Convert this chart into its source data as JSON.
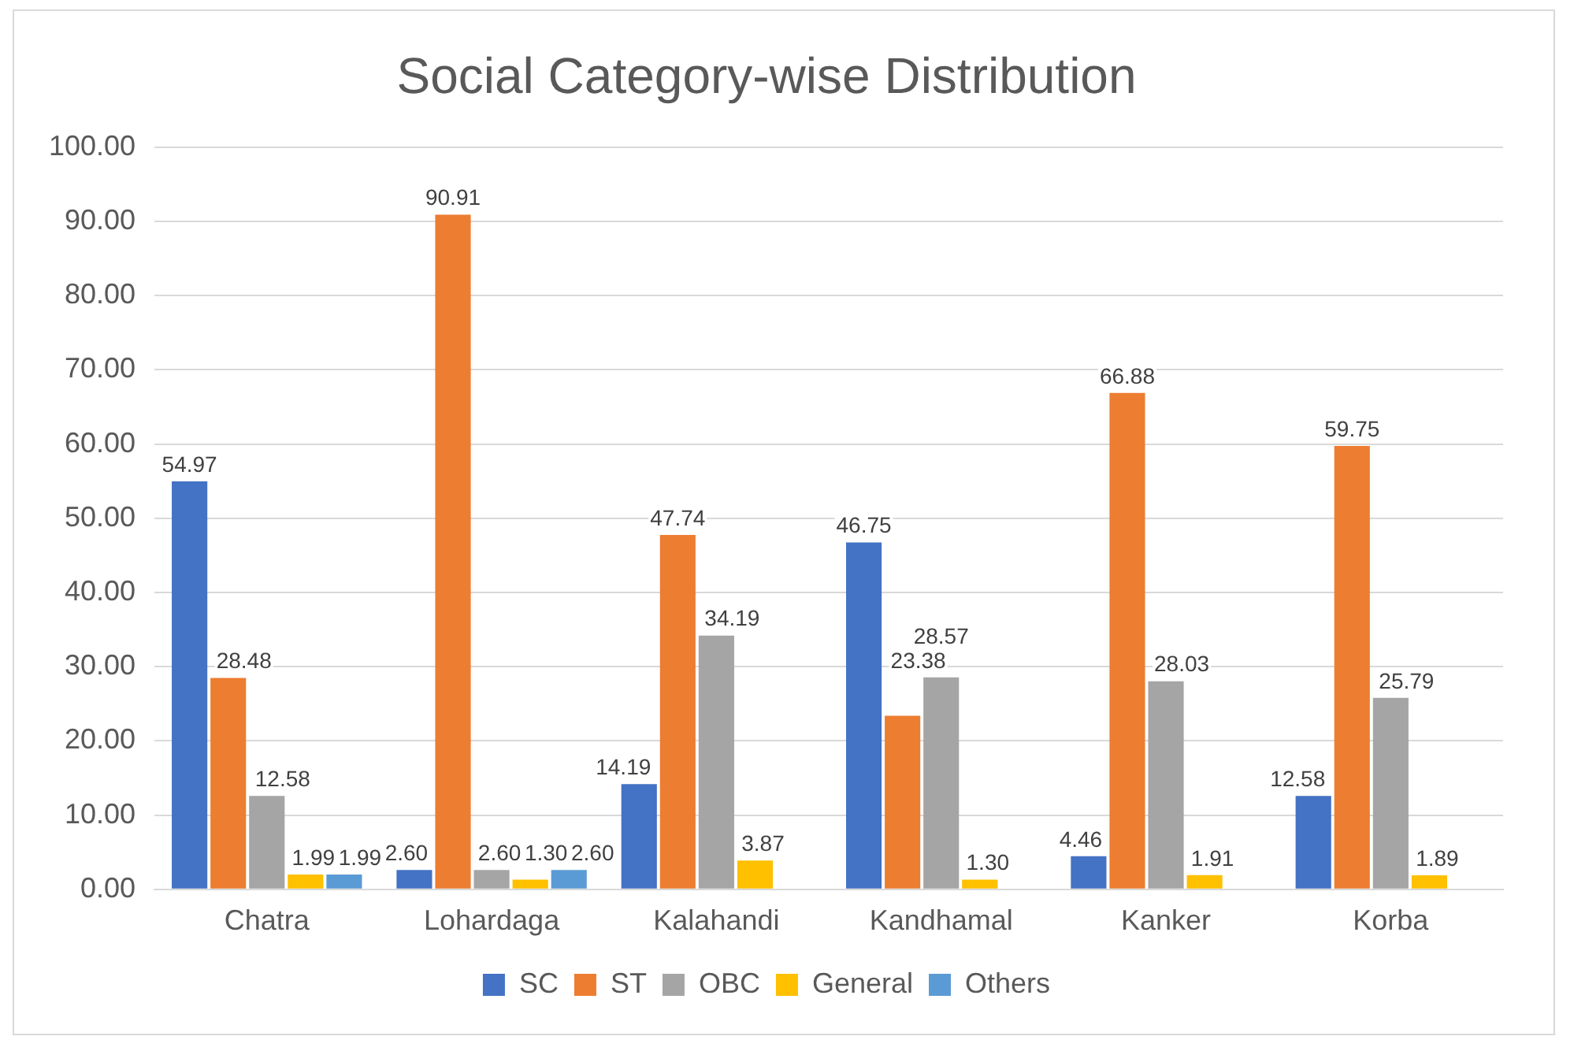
{
  "chart_data": {
    "type": "bar",
    "title": "Social Category-wise Distribution",
    "categories": [
      "Chatra",
      "Lohardaga",
      "Kalahandi",
      "Kandhamal",
      "Kanker",
      "Korba"
    ],
    "series": [
      {
        "name": "SC",
        "color": "#4472c4",
        "values": [
          54.97,
          2.6,
          14.19,
          46.75,
          4.46,
          12.58
        ],
        "value_labels": [
          "54.97",
          "2.60",
          "14.19",
          "46.75",
          "4.46",
          "12.58"
        ]
      },
      {
        "name": "ST",
        "color": "#ed7d31",
        "values": [
          28.48,
          90.91,
          47.74,
          23.38,
          66.88,
          59.75
        ],
        "value_labels": [
          "28.48",
          "90.91",
          "47.74",
          "23.38",
          "66.88",
          "59.75"
        ]
      },
      {
        "name": "OBC",
        "color": "#a5a5a5",
        "values": [
          12.58,
          2.6,
          34.19,
          28.57,
          28.03,
          25.79
        ],
        "value_labels": [
          "12.58",
          "2.60",
          "34.19",
          "28.57",
          "28.03",
          "25.79"
        ]
      },
      {
        "name": "General",
        "color": "#ffc000",
        "values": [
          1.99,
          1.3,
          3.87,
          1.3,
          1.91,
          1.89
        ],
        "value_labels": [
          "1.99",
          "1.30",
          "3.87",
          "1.30",
          "1.91",
          "1.89"
        ]
      },
      {
        "name": "Others",
        "color": "#5b9bd5",
        "values": [
          1.99,
          2.6,
          null,
          null,
          null,
          null
        ],
        "value_labels": [
          "1.99",
          "2.60",
          null,
          null,
          null,
          null
        ]
      }
    ],
    "ylim": [
      0,
      100
    ],
    "yticks": [
      {
        "value": 0,
        "label": "0.00"
      },
      {
        "value": 10,
        "label": "10.00"
      },
      {
        "value": 20,
        "label": "20.00"
      },
      {
        "value": 30,
        "label": "30.00"
      },
      {
        "value": 40,
        "label": "40.00"
      },
      {
        "value": 50,
        "label": "50.00"
      },
      {
        "value": 60,
        "label": "60.00"
      },
      {
        "value": 70,
        "label": "70.00"
      },
      {
        "value": 80,
        "label": "80.00"
      },
      {
        "value": 90,
        "label": "90.00"
      },
      {
        "value": 100,
        "label": "100.00"
      }
    ],
    "grid": "y",
    "legend": "bottom"
  }
}
